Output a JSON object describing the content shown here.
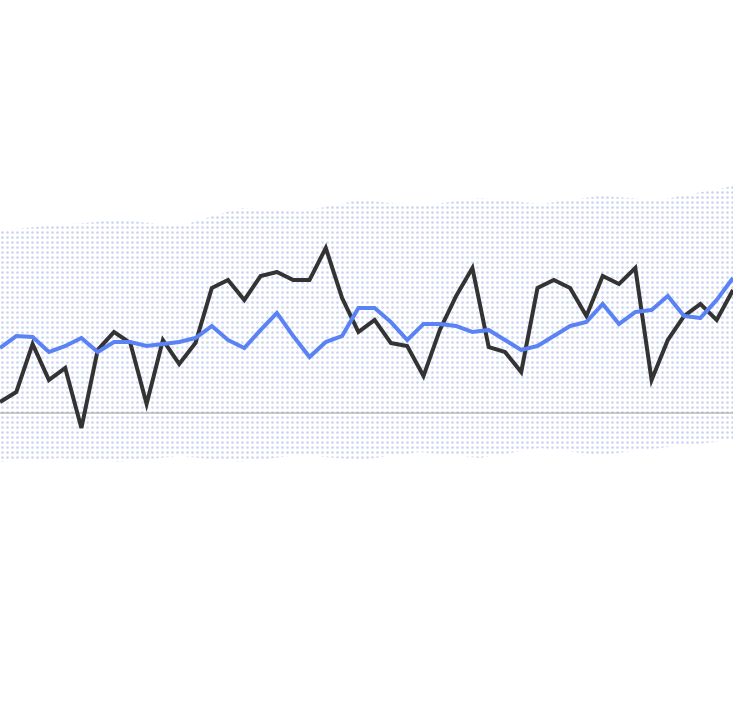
{
  "chart_data": {
    "type": "line",
    "categories": [
      null,
      null,
      null,
      null,
      null,
      null,
      null,
      null,
      null,
      null,
      null,
      null,
      null,
      null,
      null,
      null,
      null,
      null,
      null,
      null,
      null,
      null,
      null,
      null,
      null,
      null,
      null,
      null,
      null,
      null,
      null,
      null,
      null,
      null,
      null,
      null,
      null,
      null,
      null,
      null,
      null,
      null,
      null,
      null,
      null,
      null
    ],
    "series": [
      {
        "color": "#333333",
        "values": [
          11,
          21,
          69,
          33,
          45,
          -15,
          63,
          81,
          70,
          9,
          73,
          49,
          70,
          125,
          133,
          113,
          137,
          141,
          133,
          133,
          165,
          115,
          81,
          93,
          70,
          67,
          37,
          83,
          117,
          145,
          66,
          61,
          41,
          125,
          133,
          125,
          97,
          137,
          129,
          145,
          33,
          73,
          97,
          109,
          93,
          123
        ]
      },
      {
        "color": "#5b82f5",
        "values": [
          65,
          77,
          76,
          61,
          67,
          75,
          61,
          71,
          71,
          67,
          69,
          71,
          75,
          87,
          73,
          65,
          83,
          100,
          77,
          56,
          71,
          77,
          105,
          105,
          91,
          73,
          89,
          89,
          87,
          81,
          83,
          73,
          63,
          67,
          77,
          87,
          91,
          109,
          89,
          101,
          103,
          117,
          97,
          95,
          113,
          135
        ]
      }
    ],
    "ylim": [
      -306,
      413
    ],
    "baseline": 0
  }
}
